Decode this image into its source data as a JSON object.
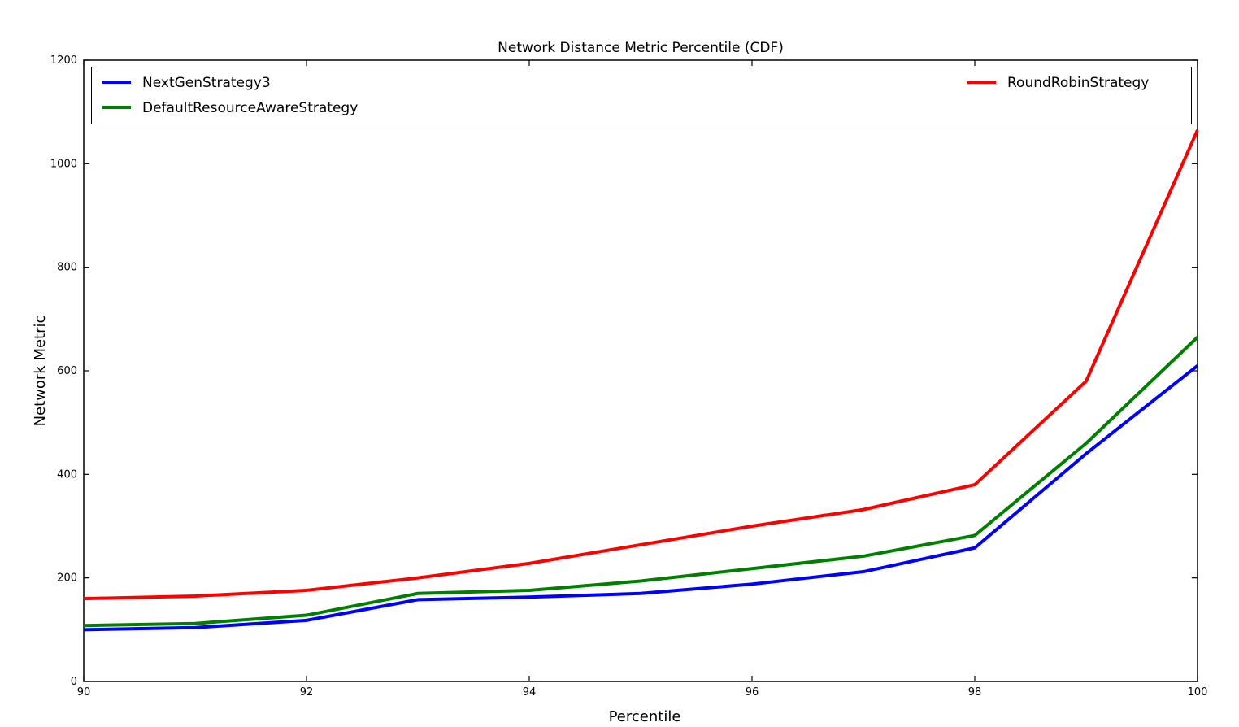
{
  "chart_data": {
    "type": "line",
    "title": "Network Distance Metric Percentile (CDF)",
    "xlabel": "Percentile",
    "ylabel": "Network Metric",
    "xlim": [
      90,
      100
    ],
    "ylim": [
      0,
      1200
    ],
    "xticks": [
      "90",
      "92",
      "94",
      "96",
      "98",
      "100"
    ],
    "xtick_values": [
      90,
      92,
      94,
      96,
      98,
      100
    ],
    "yticks": [
      "0",
      "200",
      "400",
      "600",
      "800",
      "1000",
      "1200"
    ],
    "ytick_values": [
      0,
      200,
      400,
      600,
      800,
      1000,
      1200
    ],
    "grid": false,
    "legend_position": "top inside, full-width box, two columns",
    "x": [
      90,
      91,
      92,
      93,
      94,
      95,
      96,
      97,
      98,
      99,
      100
    ],
    "series": [
      {
        "name": "NextGenStrategy3",
        "color": "#0000ff",
        "values": [
          100,
          104,
          118,
          158,
          163,
          170,
          188,
          212,
          258,
          440,
          610
        ]
      },
      {
        "name": "DefaultResourceAwareStrategy",
        "color": "#008000",
        "values": [
          108,
          112,
          128,
          170,
          176,
          194,
          218,
          242,
          282,
          460,
          665
        ]
      },
      {
        "name": "RoundRobinStrategy",
        "color": "#ff0000",
        "values": [
          160,
          165,
          176,
          200,
          228,
          264,
          300,
          332,
          380,
          580,
          1065
        ]
      }
    ]
  }
}
